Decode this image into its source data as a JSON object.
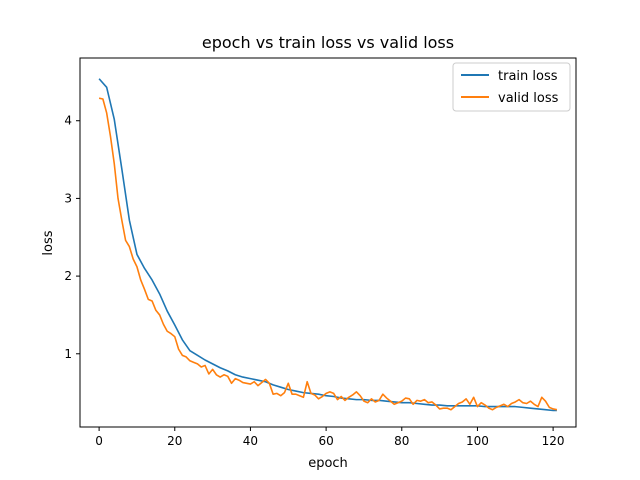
{
  "chart_data": {
    "type": "line",
    "title": "epoch vs train loss vs valid loss",
    "xlabel": "epoch",
    "ylabel": "loss",
    "xlim": [
      -5.05,
      126.05
    ],
    "ylim": [
      0.0575,
      4.8075
    ],
    "xticks": [
      0,
      20,
      40,
      60,
      80,
      100,
      120
    ],
    "yticks": [
      1,
      2,
      3,
      4
    ],
    "grid": false,
    "legend_position": "top-right",
    "series": [
      {
        "name": "train loss",
        "color": "#1f77b4",
        "x": [
          0,
          2,
          4,
          6,
          8,
          10,
          12,
          14,
          16,
          18,
          20,
          22,
          24,
          26,
          28,
          30,
          32,
          34,
          36,
          38,
          40,
          42,
          44,
          46,
          48,
          50,
          52,
          54,
          56,
          58,
          60,
          62,
          64,
          66,
          68,
          70,
          72,
          74,
          76,
          78,
          80,
          82,
          84,
          86,
          88,
          90,
          92,
          94,
          96,
          98,
          100,
          102,
          104,
          106,
          108,
          110,
          112,
          114,
          116,
          118,
          120,
          121
        ],
        "y": [
          4.54,
          4.43,
          4.02,
          3.38,
          2.72,
          2.28,
          2.1,
          1.95,
          1.77,
          1.55,
          1.37,
          1.18,
          1.04,
          0.98,
          0.92,
          0.87,
          0.82,
          0.78,
          0.73,
          0.7,
          0.68,
          0.66,
          0.64,
          0.6,
          0.57,
          0.54,
          0.52,
          0.5,
          0.49,
          0.48,
          0.46,
          0.45,
          0.43,
          0.42,
          0.41,
          0.41,
          0.4,
          0.4,
          0.39,
          0.38,
          0.37,
          0.37,
          0.36,
          0.35,
          0.34,
          0.34,
          0.33,
          0.33,
          0.33,
          0.33,
          0.33,
          0.32,
          0.32,
          0.32,
          0.32,
          0.32,
          0.31,
          0.3,
          0.29,
          0.28,
          0.27,
          0.27
        ]
      },
      {
        "name": "valid loss",
        "color": "#ff7f0e",
        "x": [
          0,
          1,
          2,
          3,
          4,
          5,
          6,
          7,
          8,
          9,
          10,
          11,
          12,
          13,
          14,
          15,
          16,
          17,
          18,
          19,
          20,
          21,
          22,
          23,
          24,
          25,
          26,
          27,
          28,
          29,
          30,
          31,
          32,
          33,
          34,
          35,
          36,
          37,
          38,
          39,
          40,
          41,
          42,
          43,
          44,
          45,
          46,
          47,
          48,
          49,
          50,
          51,
          52,
          53,
          54,
          55,
          56,
          57,
          58,
          59,
          60,
          61,
          62,
          63,
          64,
          65,
          66,
          67,
          68,
          69,
          70,
          71,
          72,
          73,
          74,
          75,
          76,
          77,
          78,
          79,
          80,
          81,
          82,
          83,
          84,
          85,
          86,
          87,
          88,
          89,
          90,
          91,
          92,
          93,
          94,
          95,
          96,
          97,
          98,
          99,
          100,
          101,
          102,
          103,
          104,
          105,
          106,
          107,
          108,
          109,
          110,
          111,
          112,
          113,
          114,
          115,
          116,
          117,
          118,
          119,
          120,
          121
        ],
        "y": [
          4.29,
          4.28,
          4.1,
          3.8,
          3.45,
          3.0,
          2.72,
          2.46,
          2.38,
          2.22,
          2.12,
          1.95,
          1.83,
          1.7,
          1.68,
          1.56,
          1.5,
          1.38,
          1.29,
          1.26,
          1.22,
          1.06,
          0.98,
          0.96,
          0.91,
          0.89,
          0.87,
          0.83,
          0.85,
          0.74,
          0.8,
          0.73,
          0.7,
          0.73,
          0.71,
          0.62,
          0.68,
          0.66,
          0.63,
          0.62,
          0.61,
          0.64,
          0.59,
          0.63,
          0.67,
          0.62,
          0.48,
          0.49,
          0.46,
          0.5,
          0.62,
          0.48,
          0.48,
          0.46,
          0.44,
          0.64,
          0.49,
          0.47,
          0.42,
          0.45,
          0.49,
          0.51,
          0.49,
          0.41,
          0.45,
          0.4,
          0.44,
          0.47,
          0.51,
          0.46,
          0.39,
          0.37,
          0.42,
          0.38,
          0.4,
          0.48,
          0.43,
          0.39,
          0.35,
          0.37,
          0.39,
          0.43,
          0.42,
          0.35,
          0.4,
          0.39,
          0.41,
          0.37,
          0.38,
          0.34,
          0.29,
          0.3,
          0.3,
          0.28,
          0.32,
          0.36,
          0.38,
          0.42,
          0.35,
          0.44,
          0.32,
          0.37,
          0.34,
          0.3,
          0.28,
          0.31,
          0.33,
          0.35,
          0.32,
          0.36,
          0.38,
          0.41,
          0.37,
          0.36,
          0.39,
          0.35,
          0.32,
          0.44,
          0.39,
          0.31,
          0.29,
          0.28
        ]
      }
    ]
  }
}
